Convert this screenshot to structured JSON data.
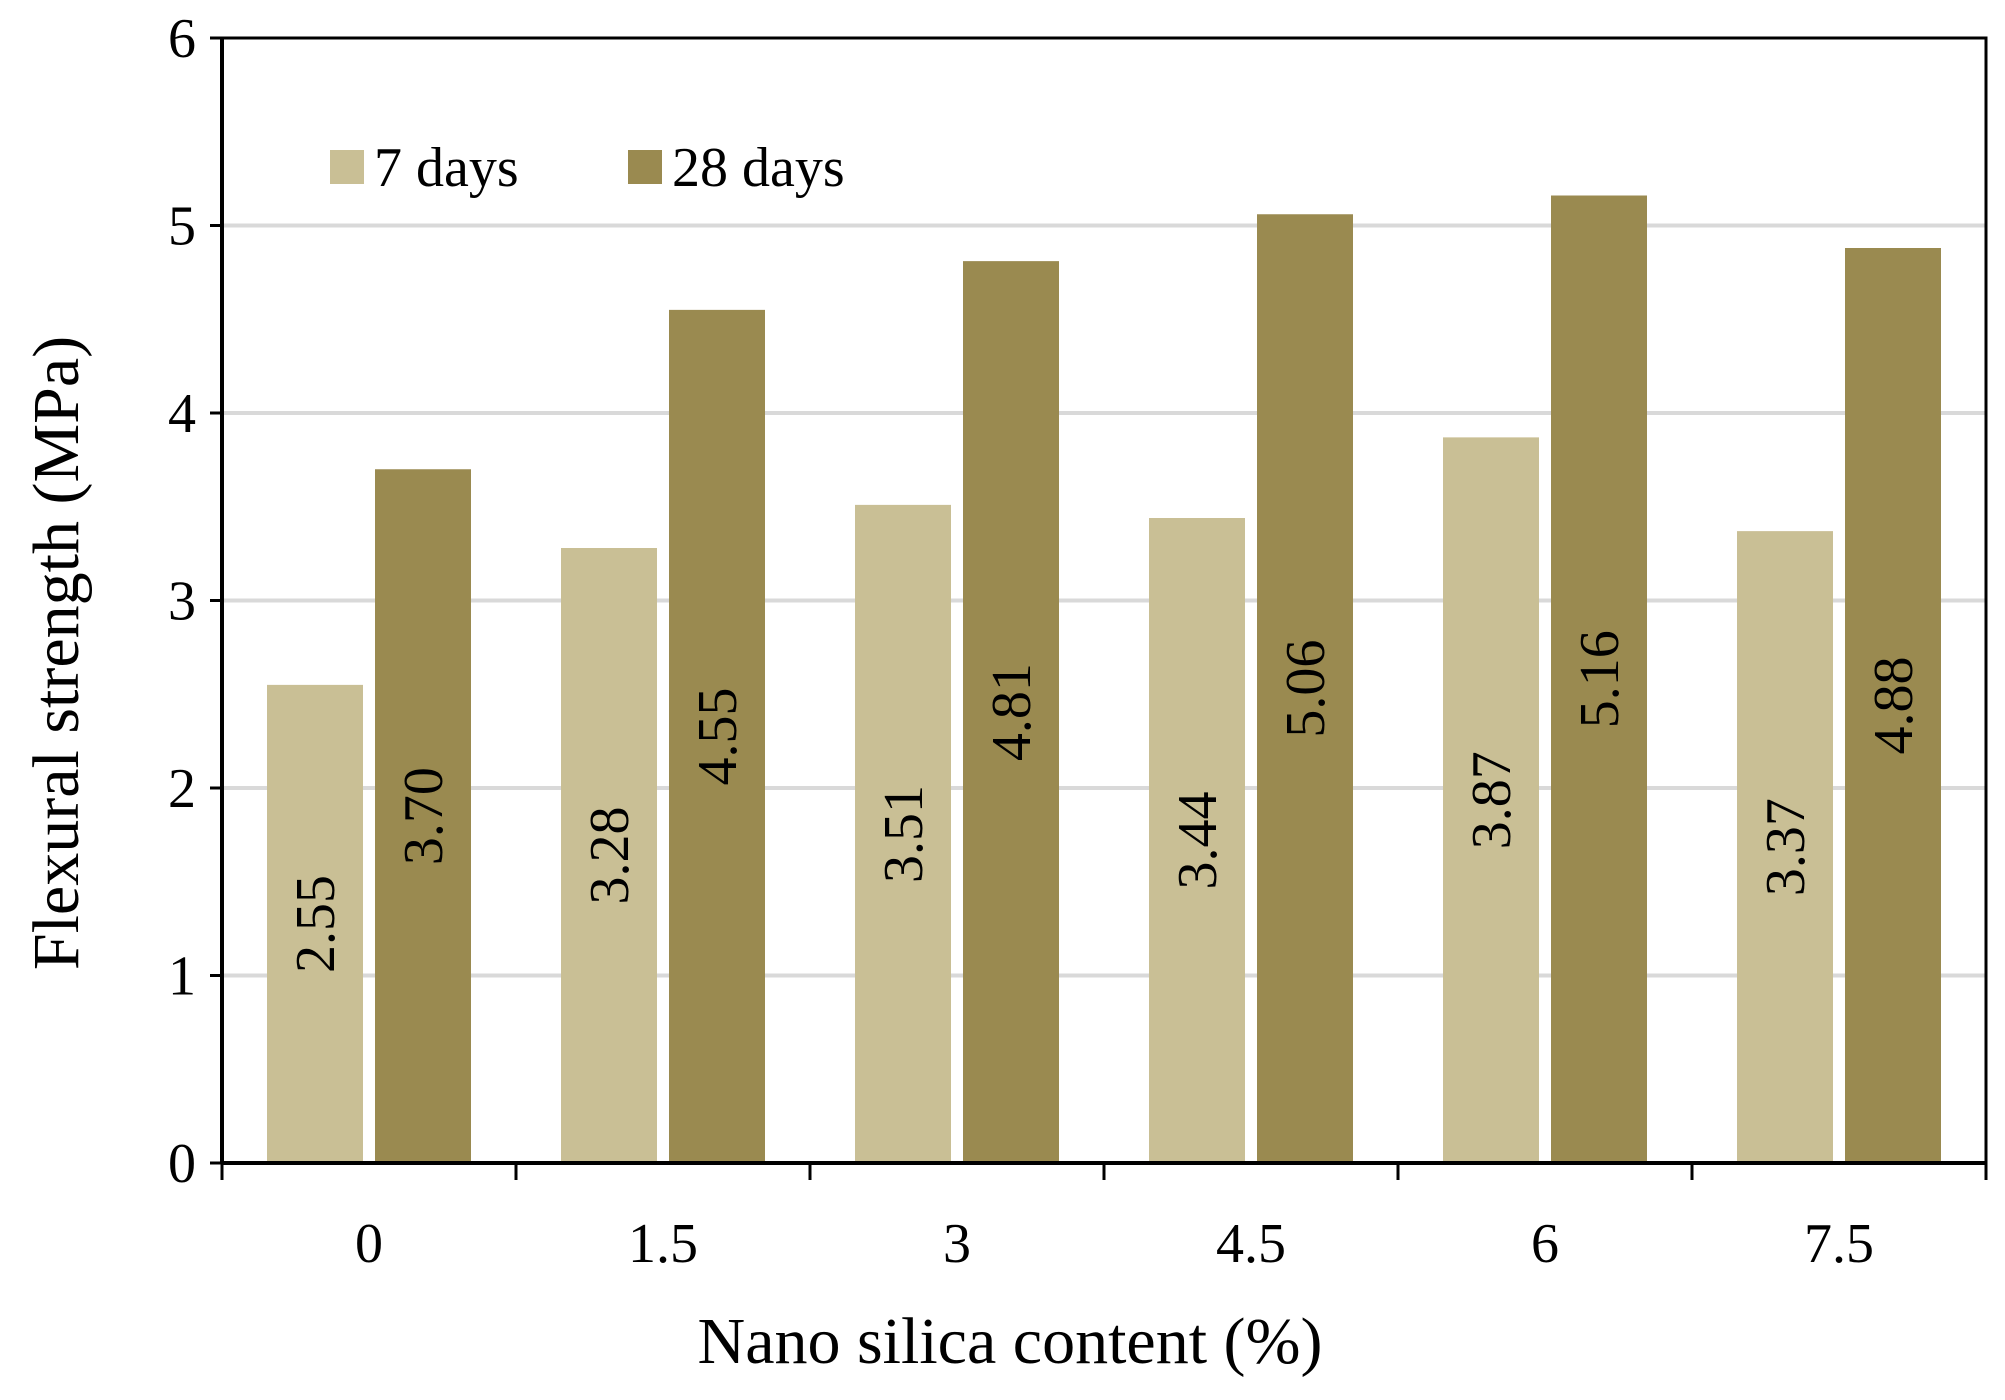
{
  "chart_data": {
    "type": "bar",
    "title": "",
    "xlabel": "Nano silica content (%)",
    "ylabel": "Flexural strength (MPa)",
    "categories": [
      "0",
      "1.5",
      "3",
      "4.5",
      "6",
      "7.5"
    ],
    "series": [
      {
        "name": "7 days",
        "values": [
          2.55,
          3.28,
          3.51,
          3.44,
          3.87,
          3.37
        ],
        "labels": [
          "2.55",
          "3.28",
          "3.51",
          "3.44",
          "3.87",
          "3.37"
        ],
        "color": "#c9bf95"
      },
      {
        "name": "28 days",
        "values": [
          3.7,
          4.55,
          4.81,
          5.06,
          5.16,
          4.88
        ],
        "labels": [
          "3.70",
          "4.55",
          "4.81",
          "5.06",
          "5.16",
          "4.88"
        ],
        "color": "#9a8a50"
      }
    ],
    "ylim": [
      0,
      6
    ],
    "yticks": [
      "0",
      "1",
      "2",
      "3",
      "4",
      "5",
      "6"
    ],
    "grid": true,
    "legend_position": "top-left"
  }
}
